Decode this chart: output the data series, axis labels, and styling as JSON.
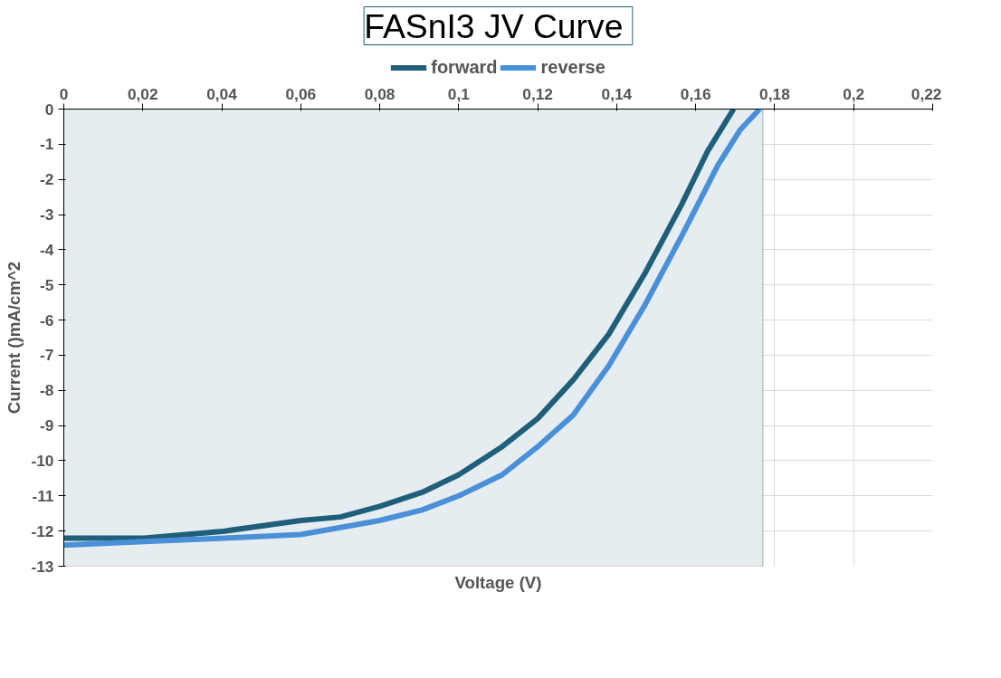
{
  "chart_data": {
    "type": "line",
    "title": "FASnI3  JV Curve",
    "xlabel": "Voltage (V)",
    "ylabel": "Current ()mA/cm^2",
    "xlim": [
      0,
      0.22
    ],
    "ylim": [
      -13,
      0
    ],
    "xticks": [
      0,
      {
        "value": 0.02,
        "label": "0,02"
      },
      {
        "value": 0.04,
        "label": "0,04"
      },
      {
        "value": 0.06,
        "label": "0,06"
      },
      {
        "value": 0.08,
        "label": "0,08"
      },
      {
        "value": 0.1,
        "label": "0,1"
      },
      {
        "value": 0.12,
        "label": "0,12"
      },
      {
        "value": 0.14,
        "label": "0,14"
      },
      {
        "value": 0.16,
        "label": "0,16"
      },
      {
        "value": 0.18,
        "label": "0,18"
      },
      {
        "value": 0.2,
        "label": "0,2"
      },
      {
        "value": 0.22,
        "label": "0,22"
      }
    ],
    "yticks": [
      0,
      -1,
      -2,
      -3,
      -4,
      -5,
      -6,
      -7,
      -8,
      -9,
      -10,
      -11,
      -12,
      -13
    ],
    "grid": true,
    "legend": "top",
    "marker": "none",
    "line_style": "solid",
    "bands": [
      {
        "axis": "x",
        "from": 0,
        "to": 0.177,
        "color": "#e6edf1"
      }
    ],
    "series": [
      {
        "name": "forward",
        "color": "#1f5f7a",
        "x": [
          0,
          0.0204,
          0.0408,
          0.06,
          0.07,
          0.08,
          0.0907,
          0.1,
          0.111,
          0.12,
          0.129,
          0.138,
          0.147,
          0.1565,
          0.163,
          0.1696
        ],
        "values": [
          -12.2,
          -12.2,
          -12.0,
          -11.7,
          -11.6,
          -11.3,
          -10.9,
          -10.4,
          -9.6,
          -8.8,
          -7.7,
          -6.4,
          -4.7,
          -2.7,
          -1.2,
          0
        ]
      },
      {
        "name": "reverse",
        "color": "#4a90d9",
        "x": [
          0,
          0.0204,
          0.0408,
          0.06,
          0.08,
          0.0907,
          0.1,
          0.111,
          0.12,
          0.129,
          0.138,
          0.147,
          0.1565,
          0.1656,
          0.1712,
          0.1762
        ],
        "values": [
          -12.4,
          -12.3,
          -12.2,
          -12.1,
          -11.7,
          -11.4,
          -11.0,
          -10.4,
          -9.6,
          -8.7,
          -7.3,
          -5.6,
          -3.6,
          -1.6,
          -0.6,
          0
        ]
      }
    ]
  }
}
